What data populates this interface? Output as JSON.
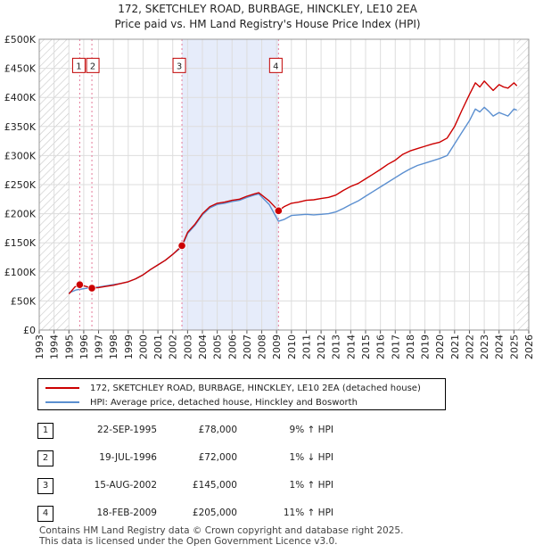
{
  "chart_data": {
    "type": "line",
    "title": "172, SKETCHLEY ROAD, BURBAGE, HINCKLEY, LE10 2EA",
    "subtitle": "Price paid vs. HM Land Registry's House Price Index (HPI)",
    "xlim": [
      1993,
      2026
    ],
    "ylim": [
      0,
      500000
    ],
    "x_ticks": [
      "1993",
      "1994",
      "1995",
      "1996",
      "1997",
      "1998",
      "1999",
      "2000",
      "2001",
      "2002",
      "2003",
      "2004",
      "2005",
      "2006",
      "2007",
      "2008",
      "2009",
      "2010",
      "2011",
      "2012",
      "2013",
      "2014",
      "2015",
      "2016",
      "2017",
      "2018",
      "2019",
      "2020",
      "2021",
      "2022",
      "2023",
      "2024",
      "2025",
      "2026"
    ],
    "y_ticks": [
      {
        "value": 0,
        "label": "£0"
      },
      {
        "value": 50000,
        "label": "£50K"
      },
      {
        "value": 100000,
        "label": "£100K"
      },
      {
        "value": 150000,
        "label": "£150K"
      },
      {
        "value": 200000,
        "label": "£200K"
      },
      {
        "value": 250000,
        "label": "£250K"
      },
      {
        "value": 300000,
        "label": "£300K"
      },
      {
        "value": 350000,
        "label": "£350K"
      },
      {
        "value": 400000,
        "label": "£400K"
      },
      {
        "value": 450000,
        "label": "£450K"
      },
      {
        "value": 500000,
        "label": "£500K"
      }
    ],
    "hatched_before": 1995.0,
    "hatched_after": 2025.2,
    "shaded_band": [
      2002.62,
      2009.13
    ],
    "series": [
      {
        "name": "172, SKETCHLEY ROAD, BURBAGE, HINCKLEY, LE10 2EA (detached house)",
        "color": "#cc0000",
        "x": [
          1995.0,
          1995.4,
          1995.73,
          1996.0,
          1996.3,
          1996.55,
          1997.0,
          1997.5,
          1998.0,
          1998.5,
          1999.0,
          1999.5,
          2000.0,
          2000.5,
          2001.0,
          2001.5,
          2002.0,
          2002.62,
          2003.0,
          2003.5,
          2004.0,
          2004.5,
          2005.0,
          2005.5,
          2006.0,
          2006.5,
          2007.0,
          2007.5,
          2007.8,
          2008.0,
          2008.5,
          2009.13,
          2009.5,
          2010.0,
          2010.5,
          2011.0,
          2011.5,
          2012.0,
          2012.5,
          2013.0,
          2013.5,
          2014.0,
          2014.5,
          2015.0,
          2015.5,
          2016.0,
          2016.5,
          2017.0,
          2017.5,
          2018.0,
          2018.5,
          2019.0,
          2019.5,
          2020.0,
          2020.5,
          2021.0,
          2021.5,
          2022.0,
          2022.4,
          2022.7,
          2023.0,
          2023.3,
          2023.6,
          2024.0,
          2024.3,
          2024.6,
          2025.0,
          2025.2
        ],
        "values": [
          62000,
          74000,
          78000,
          76000,
          74000,
          72000,
          73000,
          75000,
          77000,
          80000,
          83000,
          88000,
          95000,
          104000,
          112000,
          120000,
          130000,
          145000,
          168000,
          182000,
          200000,
          212000,
          218000,
          220000,
          223000,
          225000,
          230000,
          234000,
          236000,
          232000,
          222000,
          205000,
          212000,
          218000,
          220000,
          223000,
          224000,
          226000,
          228000,
          232000,
          240000,
          247000,
          252000,
          260000,
          268000,
          276000,
          285000,
          292000,
          302000,
          308000,
          312000,
          316000,
          320000,
          323000,
          330000,
          350000,
          378000,
          405000,
          425000,
          418000,
          428000,
          420000,
          412000,
          422000,
          418000,
          416000,
          425000,
          420000
        ]
      },
      {
        "name": "HPI: Average price, detached house, Hinckley and Bosworth",
        "color": "#5b8fd0",
        "x": [
          1995.0,
          1995.5,
          1996.0,
          1996.5,
          1997.0,
          1997.5,
          1998.0,
          1998.5,
          1999.0,
          1999.5,
          2000.0,
          2000.5,
          2001.0,
          2001.5,
          2002.0,
          2002.62,
          2003.0,
          2003.5,
          2004.0,
          2004.5,
          2005.0,
          2005.5,
          2006.0,
          2006.5,
          2007.0,
          2007.5,
          2007.8,
          2008.0,
          2008.5,
          2009.13,
          2009.5,
          2010.0,
          2010.5,
          2011.0,
          2011.5,
          2012.0,
          2012.5,
          2013.0,
          2013.5,
          2014.0,
          2014.5,
          2015.0,
          2015.5,
          2016.0,
          2016.5,
          2017.0,
          2017.5,
          2018.0,
          2018.5,
          2019.0,
          2019.5,
          2020.0,
          2020.5,
          2021.0,
          2021.5,
          2022.0,
          2022.4,
          2022.7,
          2023.0,
          2023.3,
          2023.6,
          2024.0,
          2024.3,
          2024.6,
          2025.0,
          2025.2
        ],
        "values": [
          64000,
          69000,
          71000,
          73000,
          74000,
          76000,
          78000,
          80000,
          83000,
          88000,
          95000,
          104000,
          112000,
          120000,
          130000,
          143000,
          166000,
          180000,
          198000,
          210000,
          216000,
          218000,
          221000,
          223000,
          228000,
          232000,
          234000,
          229000,
          216000,
          187000,
          190000,
          197000,
          198000,
          199000,
          198000,
          199000,
          200000,
          203000,
          209000,
          216000,
          222000,
          230000,
          238000,
          246000,
          254000,
          262000,
          270000,
          277000,
          283000,
          287000,
          291000,
          295000,
          300000,
          320000,
          340000,
          360000,
          380000,
          375000,
          383000,
          376000,
          368000,
          374000,
          371000,
          368000,
          380000,
          378000
        ]
      }
    ],
    "markers": [
      {
        "label": "1",
        "x": 1995.73,
        "value": 78000
      },
      {
        "label": "2",
        "x": 1996.55,
        "value": 72000
      },
      {
        "label": "3",
        "x": 2002.62,
        "value": 145000
      },
      {
        "label": "4",
        "x": 2009.13,
        "value": 205000
      }
    ]
  },
  "legend": {
    "price_paid_label": "172, SKETCHLEY ROAD, BURBAGE, HINCKLEY, LE10 2EA (detached house)",
    "hpi_label": "HPI: Average price, detached house, Hinckley and Bosworth",
    "price_paid_color": "#cc0000",
    "hpi_color": "#5b8fd0"
  },
  "transactions": [
    {
      "num": "1",
      "date": "22-SEP-1995",
      "price": "£78,000",
      "hpi": "9% ↑ HPI"
    },
    {
      "num": "2",
      "date": "19-JUL-1996",
      "price": "£72,000",
      "hpi": "1% ↓ HPI"
    },
    {
      "num": "3",
      "date": "15-AUG-2002",
      "price": "£145,000",
      "hpi": "1% ↑ HPI"
    },
    {
      "num": "4",
      "date": "18-FEB-2009",
      "price": "£205,000",
      "hpi": "11% ↑ HPI"
    }
  ],
  "footer": {
    "line1": "Contains HM Land Registry data © Crown copyright and database right 2025.",
    "line2": "This data is licensed under the Open Government Licence v3.0."
  }
}
